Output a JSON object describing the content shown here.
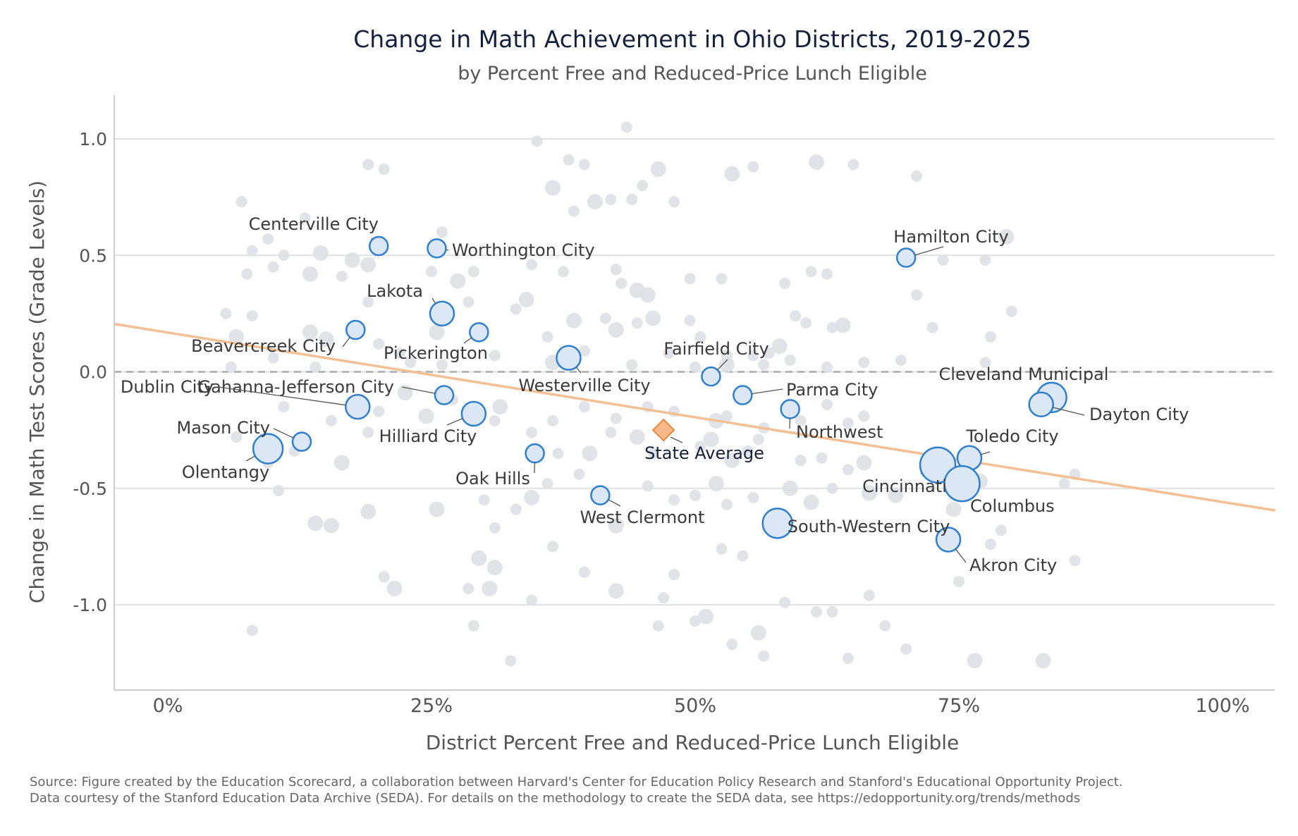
{
  "chart_data": {
    "type": "scatter",
    "title": "Change in Math Achievement in Ohio Districts, 2019-2025",
    "subtitle": "by Percent Free and Reduced-Price Lunch Eligible",
    "xlabel": "District Percent Free and Reduced-Price Lunch Eligible",
    "ylabel": "Change in Math Test Scores (Grade Levels)",
    "xlim": [
      -5,
      105
    ],
    "ylim": [
      -1.36,
      1.18
    ],
    "x_ticks": [
      0,
      25,
      50,
      75,
      100
    ],
    "x_tick_labels": [
      "0%",
      "25%",
      "50%",
      "75%",
      "100%"
    ],
    "y_ticks": [
      1.0,
      0.5,
      0.0,
      -0.5,
      -1.0
    ],
    "y_tick_labels": [
      "1.0",
      "0.5",
      "0.0",
      "-0.5",
      "-1.0"
    ],
    "grid": "horizontal",
    "reference_line_y": 0,
    "trend_line": {
      "x": [
        -5,
        105
      ],
      "y": [
        0.205,
        -0.595
      ],
      "color": "#f5bf94"
    },
    "colors": {
      "background_points": "#dde1e6",
      "highlight_fill": "#dbe7f4",
      "highlight_stroke": "#2f7fcf",
      "state_fill": "#f7b98a",
      "state_stroke": "#e8893e",
      "grid": "#e1e1e1",
      "axis": "#cccccc",
      "title": "#14213d",
      "text": "#555555"
    },
    "highlighted": [
      {
        "name": "Centerville City",
        "x": 20,
        "y": 0.54,
        "size": 1
      },
      {
        "name": "Worthington City",
        "x": 25.5,
        "y": 0.53,
        "size": 1
      },
      {
        "name": "Lakota",
        "x": 26,
        "y": 0.25,
        "size": 2
      },
      {
        "name": "Pickerington",
        "x": 29.5,
        "y": 0.17,
        "size": 1
      },
      {
        "name": "Beavercreek City",
        "x": 17.8,
        "y": 0.18,
        "size": 1
      },
      {
        "name": "Westerville City",
        "x": 38,
        "y": 0.06,
        "size": 2
      },
      {
        "name": "Fairfield City",
        "x": 51.5,
        "y": -0.02,
        "size": 1
      },
      {
        "name": "Parma City",
        "x": 54.5,
        "y": -0.1,
        "size": 1
      },
      {
        "name": "Northwest",
        "x": 59,
        "y": -0.16,
        "size": 1
      },
      {
        "name": "Gahanna-Jefferson City",
        "x": 26.2,
        "y": -0.1,
        "size": 1
      },
      {
        "name": "Dublin City",
        "x": 18,
        "y": -0.15,
        "size": 2
      },
      {
        "name": "Hilliard City",
        "x": 29,
        "y": -0.18,
        "size": 2
      },
      {
        "name": "Mason City",
        "x": 12.7,
        "y": -0.3,
        "size": 1
      },
      {
        "name": "Olentangy",
        "x": 9.5,
        "y": -0.33,
        "size": 3
      },
      {
        "name": "Oak Hills",
        "x": 34.8,
        "y": -0.35,
        "size": 1
      },
      {
        "name": "West Clermont",
        "x": 41,
        "y": -0.53,
        "size": 1
      },
      {
        "name": "South-Western City",
        "x": 57.8,
        "y": -0.65,
        "size": 3
      },
      {
        "name": "Hamilton City",
        "x": 70,
        "y": 0.49,
        "size": 1
      },
      {
        "name": "Cleveland Municipal",
        "x": 83.8,
        "y": -0.11,
        "size": 3
      },
      {
        "name": "Dayton City",
        "x": 82.8,
        "y": -0.14,
        "size": 2
      },
      {
        "name": "Toledo City",
        "x": 76,
        "y": -0.37,
        "size": 2
      },
      {
        "name": "Cincinnati",
        "x": 73,
        "y": -0.4,
        "size": 4
      },
      {
        "name": "Columbus",
        "x": 75.3,
        "y": -0.48,
        "size": 4
      },
      {
        "name": "Akron City",
        "x": 74,
        "y": -0.72,
        "size": 2
      }
    ],
    "state_average": {
      "name": "State Average",
      "x": 47,
      "y": -0.25
    },
    "background_points": [
      [
        7,
        0.73,
        1
      ],
      [
        9.5,
        0.57,
        1
      ],
      [
        13,
        0.66,
        1
      ],
      [
        19,
        0.89,
        1
      ],
      [
        20.5,
        0.87,
        1
      ],
      [
        35,
        0.99,
        1
      ],
      [
        38,
        0.91,
        1
      ],
      [
        43.5,
        1.05,
        1
      ],
      [
        46.5,
        0.87,
        2
      ],
      [
        61.5,
        0.9,
        2
      ],
      [
        65,
        0.89,
        1
      ],
      [
        71,
        0.84,
        1
      ],
      [
        26,
        0.6,
        1
      ],
      [
        36.5,
        0.79,
        2
      ],
      [
        38.5,
        0.69,
        1
      ],
      [
        39.5,
        0.89,
        1
      ],
      [
        40.5,
        0.73,
        2
      ],
      [
        42,
        0.74,
        1
      ],
      [
        44,
        0.74,
        1
      ],
      [
        45,
        0.8,
        1
      ],
      [
        48,
        0.73,
        1
      ],
      [
        53.5,
        0.85,
        2
      ],
      [
        55.5,
        0.88,
        1
      ],
      [
        79.5,
        0.58,
        2
      ],
      [
        8,
        0.52,
        1
      ],
      [
        10,
        0.45,
        1
      ],
      [
        11,
        0.5,
        1
      ],
      [
        14.5,
        0.51,
        2
      ],
      [
        17.5,
        0.48,
        2
      ],
      [
        19,
        0.46,
        2
      ],
      [
        25,
        0.43,
        1
      ],
      [
        27.5,
        0.39,
        2
      ],
      [
        29,
        0.43,
        1
      ],
      [
        34.5,
        0.46,
        1
      ],
      [
        37.5,
        0.43,
        1
      ],
      [
        42.5,
        0.44,
        1
      ],
      [
        43,
        0.38,
        1
      ],
      [
        44.5,
        0.35,
        2
      ],
      [
        45.5,
        0.33,
        2
      ],
      [
        49.5,
        0.4,
        1
      ],
      [
        52.5,
        0.4,
        1
      ],
      [
        58.5,
        0.38,
        1
      ],
      [
        61,
        0.43,
        1
      ],
      [
        62.5,
        0.42,
        1
      ],
      [
        71,
        0.33,
        1
      ],
      [
        73.5,
        0.48,
        1
      ],
      [
        77.5,
        0.48,
        1
      ],
      [
        7.5,
        0.42,
        1
      ],
      [
        13.5,
        0.42,
        2
      ],
      [
        16.5,
        0.41,
        1
      ],
      [
        5.5,
        0.25,
        1
      ],
      [
        6.5,
        0.15,
        2
      ],
      [
        8,
        0.24,
        1
      ],
      [
        13.5,
        0.17,
        2
      ],
      [
        15,
        0.14,
        2
      ],
      [
        19,
        0.3,
        1
      ],
      [
        28.5,
        0.3,
        1
      ],
      [
        33,
        0.27,
        1
      ],
      [
        34,
        0.31,
        2
      ],
      [
        36,
        0.15,
        1
      ],
      [
        38.5,
        0.22,
        2
      ],
      [
        41.5,
        0.23,
        1
      ],
      [
        42.5,
        0.18,
        2
      ],
      [
        44.5,
        0.21,
        1
      ],
      [
        46,
        0.23,
        2
      ],
      [
        49.5,
        0.22,
        1
      ],
      [
        50.5,
        0.15,
        1
      ],
      [
        53,
        0.07,
        1
      ],
      [
        57,
        0.08,
        1
      ],
      [
        58,
        0.11,
        2
      ],
      [
        59.5,
        0.24,
        1
      ],
      [
        60.5,
        0.21,
        1
      ],
      [
        63,
        0.19,
        1
      ],
      [
        64,
        0.2,
        2
      ],
      [
        72.5,
        0.19,
        1
      ],
      [
        77.5,
        0.04,
        1
      ],
      [
        78,
        0.15,
        1
      ],
      [
        80,
        0.26,
        1
      ],
      [
        6,
        0.02,
        1
      ],
      [
        10,
        0.06,
        1
      ],
      [
        14,
        0.02,
        1
      ],
      [
        20,
        0.12,
        1
      ],
      [
        22,
        0.08,
        1
      ],
      [
        23,
        0.04,
        1
      ],
      [
        25.5,
        0.17,
        2
      ],
      [
        26,
        0.03,
        1
      ],
      [
        31,
        0.07,
        1
      ],
      [
        36.5,
        0.04,
        2
      ],
      [
        39.5,
        0.09,
        1
      ],
      [
        44,
        0.03,
        1
      ],
      [
        47.5,
        0.08,
        1
      ],
      [
        50,
        0.02,
        1
      ],
      [
        53,
        0.03,
        2
      ],
      [
        55.5,
        0.07,
        1
      ],
      [
        56.5,
        0.03,
        1
      ],
      [
        59,
        0.05,
        1
      ],
      [
        62.5,
        0.02,
        1
      ],
      [
        66,
        0.04,
        1
      ],
      [
        69.5,
        0.05,
        1
      ],
      [
        11,
        -0.15,
        1
      ],
      [
        15.5,
        -0.21,
        1
      ],
      [
        20,
        -0.17,
        1
      ],
      [
        22.5,
        -0.09,
        2
      ],
      [
        24.5,
        -0.19,
        2
      ],
      [
        27,
        -0.12,
        1
      ],
      [
        31.5,
        -0.15,
        2
      ],
      [
        31,
        -0.21,
        1
      ],
      [
        36.5,
        -0.21,
        1
      ],
      [
        39.5,
        -0.15,
        1
      ],
      [
        42.5,
        -0.2,
        1
      ],
      [
        45.5,
        -0.15,
        1
      ],
      [
        48,
        -0.17,
        1
      ],
      [
        52,
        -0.21,
        2
      ],
      [
        53,
        -0.19,
        1
      ],
      [
        56.5,
        -0.24,
        1
      ],
      [
        60,
        -0.21,
        1
      ],
      [
        62.5,
        -0.14,
        1
      ],
      [
        64.5,
        -0.22,
        1
      ],
      [
        66,
        -0.19,
        1
      ],
      [
        6.5,
        -0.28,
        1
      ],
      [
        9.5,
        -0.39,
        1
      ],
      [
        12,
        -0.34,
        1
      ],
      [
        16.5,
        -0.39,
        2
      ],
      [
        19,
        -0.26,
        1
      ],
      [
        34.5,
        -0.26,
        1
      ],
      [
        37,
        -0.35,
        1
      ],
      [
        40,
        -0.35,
        2
      ],
      [
        42,
        -0.26,
        1
      ],
      [
        44.5,
        -0.28,
        2
      ],
      [
        46,
        -0.35,
        1
      ],
      [
        50.5,
        -0.32,
        1
      ],
      [
        51.5,
        -0.29,
        2
      ],
      [
        53.5,
        -0.38,
        2
      ],
      [
        55,
        -0.34,
        1
      ],
      [
        56,
        -0.29,
        1
      ],
      [
        60,
        -0.38,
        1
      ],
      [
        62,
        -0.37,
        1
      ],
      [
        64.5,
        -0.42,
        1
      ],
      [
        66,
        -0.39,
        2
      ],
      [
        10.5,
        -0.51,
        1
      ],
      [
        14,
        -0.65,
        2
      ],
      [
        15.5,
        -0.66,
        2
      ],
      [
        19,
        -0.6,
        2
      ],
      [
        25.5,
        -0.59,
        2
      ],
      [
        30,
        -0.55,
        1
      ],
      [
        31,
        -0.67,
        1
      ],
      [
        33,
        -0.59,
        1
      ],
      [
        34.5,
        -0.54,
        2
      ],
      [
        36,
        -0.48,
        1
      ],
      [
        39,
        -0.44,
        1
      ],
      [
        42.5,
        -0.66,
        2
      ],
      [
        45.5,
        -0.49,
        1
      ],
      [
        48,
        -0.55,
        1
      ],
      [
        50,
        -0.53,
        1
      ],
      [
        52,
        -0.48,
        2
      ],
      [
        53,
        -0.57,
        1
      ],
      [
        55.5,
        -0.54,
        1
      ],
      [
        59,
        -0.5,
        2
      ],
      [
        61,
        -0.56,
        2
      ],
      [
        63,
        -0.5,
        1
      ],
      [
        66.5,
        -0.52,
        2
      ],
      [
        69,
        -0.53,
        2
      ],
      [
        77,
        -0.47,
        2
      ],
      [
        79,
        -0.68,
        1
      ],
      [
        86,
        -0.44,
        1
      ],
      [
        85,
        -0.48,
        1
      ],
      [
        20.5,
        -0.88,
        1
      ],
      [
        21.5,
        -0.93,
        2
      ],
      [
        28.5,
        -0.93,
        1
      ],
      [
        29.5,
        -0.8,
        2
      ],
      [
        30.5,
        -0.93,
        2
      ],
      [
        31,
        -0.84,
        2
      ],
      [
        34.5,
        -0.98,
        1
      ],
      [
        36.5,
        -0.75,
        1
      ],
      [
        39.5,
        -0.86,
        1
      ],
      [
        42.5,
        -0.94,
        2
      ],
      [
        47,
        -0.97,
        1
      ],
      [
        48,
        -0.87,
        1
      ],
      [
        50,
        -1.07,
        1
      ],
      [
        51,
        -1.05,
        2
      ],
      [
        52.5,
        -0.76,
        1
      ],
      [
        54.5,
        -0.79,
        1
      ],
      [
        56,
        -1.12,
        2
      ],
      [
        58.5,
        -0.99,
        1
      ],
      [
        61.5,
        -1.03,
        1
      ],
      [
        63,
        -1.03,
        1
      ],
      [
        66.5,
        -0.96,
        1
      ],
      [
        68,
        -1.09,
        1
      ],
      [
        70,
        -1.19,
        1
      ],
      [
        75,
        -0.9,
        1
      ],
      [
        76.5,
        -1.24,
        2
      ],
      [
        83,
        -1.24,
        2
      ],
      [
        86,
        -0.81,
        1
      ],
      [
        8,
        -1.11,
        1
      ],
      [
        29,
        -1.09,
        1
      ],
      [
        32.5,
        -1.24,
        1
      ],
      [
        46.5,
        -1.09,
        1
      ],
      [
        53.5,
        -1.17,
        1
      ],
      [
        56.5,
        -1.22,
        1
      ],
      [
        64.5,
        -1.23,
        1
      ],
      [
        74.5,
        -0.59,
        2
      ],
      [
        78,
        -0.74,
        1
      ]
    ],
    "source_line1": "Source: Figure created by the Education Scorecard, a collaboration between Harvard's Center for Education Policy Research and Stanford's Educational Opportunity Project.",
    "source_line2": "Data courtesy of the Stanford Education Data Archive (SEDA). For details on the methodology to create the SEDA data, see https://edopportunity.org/trends/methods"
  }
}
